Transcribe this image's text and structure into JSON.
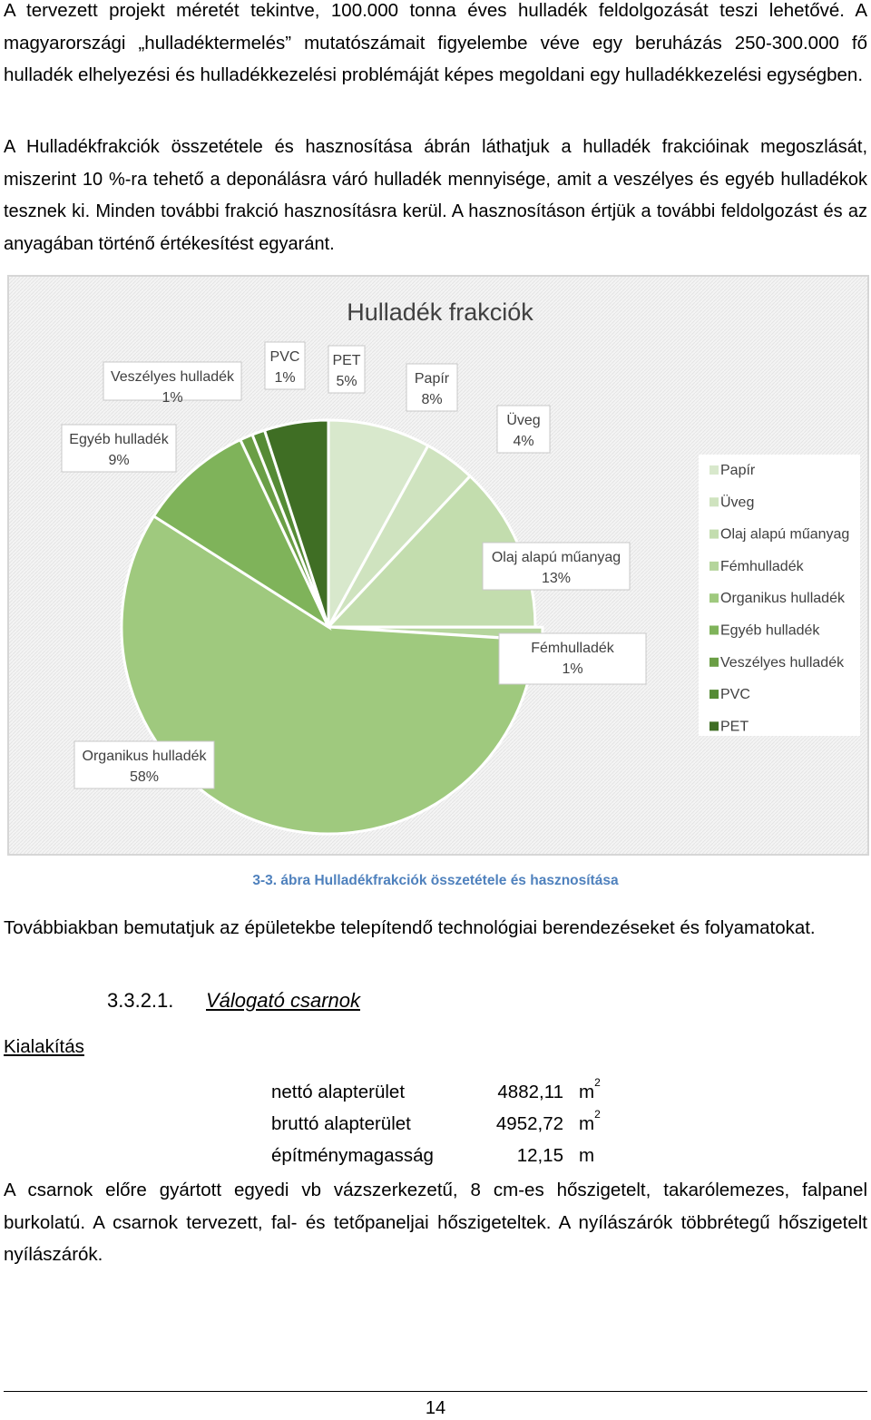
{
  "paragraphs": {
    "p1": "A tervezett projekt méretét tekintve, 100.000 tonna éves hulladék feldolgozását teszi lehetővé. A magyarországi „hulladéktermelés” mutatószámait figyelembe véve egy beruházás 250-300.000 fő hulladék elhelyezési és hulladékkezelési problémáját képes megoldani egy hulladékkezelési egységben.",
    "p2": "A Hulladékfrakciók összetétele és hasznosítása ábrán láthatjuk a hulladék frakcióinak megoszlását, miszerint 10 %-ra tehető a deponálásra váró hulladék mennyisége, amit a veszélyes és egyéb hulladékok tesznek ki. Minden további frakció hasznosításra kerül. A hasznosításon értjük a további feldolgozást és az anyagában történő értékesítést egyaránt.",
    "p3": "Továbbiakban bemutatjuk az épületekbe telepítendő technológiai berendezéseket és folyamatokat.",
    "p4": "A csarnok előre gyártott egyedi vb vázszerkezetű, 8 cm-es hőszigetelt, takarólemezes, falpanel burkolatú. A csarnok tervezett, fal- és tetőpaneljai hőszigeteltek. A nyílászárók többrétegű hőszigetelt nyílászárók."
  },
  "caption": "3-3. ábra Hulladékfrakciók összetétele és hasznosítása",
  "section": {
    "number": "3.3.2.1.",
    "title": "Válogató csarnok",
    "subheading": "Kialakítás"
  },
  "specs": [
    {
      "label": "nettó alapterület",
      "value": "4882,11",
      "unit": "m",
      "sup": "2"
    },
    {
      "label": "bruttó alapterület",
      "value": "4952,72",
      "unit": "m",
      "sup": "2"
    },
    {
      "label": "építménymagasság",
      "value": "12,15",
      "unit": "m",
      "sup": ""
    }
  ],
  "page_number": "14",
  "chart_data": {
    "type": "pie",
    "title": "Hulladék frakciók",
    "legend_position": "right",
    "slices": [
      {
        "name": "Papír",
        "value": 8,
        "label": "8%",
        "color": "#d8e8cc"
      },
      {
        "name": "Üveg",
        "value": 4,
        "label": "4%",
        "color": "#cfe3bf"
      },
      {
        "name": "Olaj alapú műanyag",
        "value": 13,
        "label": "13%",
        "color": "#c3ddae"
      },
      {
        "name": "Fémhulladék",
        "value": 1,
        "label": "1%",
        "color": "#b5d59c"
      },
      {
        "name": "Organikus hulladék",
        "value": 58,
        "label": "58%",
        "color": "#9fc97e"
      },
      {
        "name": "Egyéb hulladék",
        "value": 9,
        "label": "9%",
        "color": "#7fb35a"
      },
      {
        "name": "Veszélyes hulladék",
        "value": 1,
        "label": "1%",
        "color": "#6a9e45"
      },
      {
        "name": "PVC",
        "value": 1,
        "label": "1%",
        "color": "#558b35"
      },
      {
        "name": "PET",
        "value": 5,
        "label": "5%",
        "color": "#3f6e24"
      }
    ]
  }
}
